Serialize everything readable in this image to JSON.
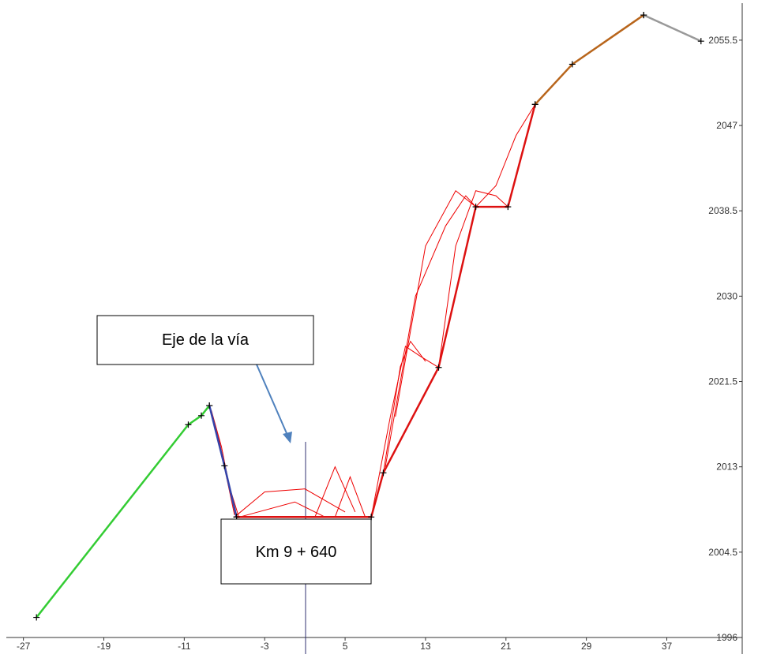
{
  "chart_data": {
    "type": "line",
    "xlim": [
      -28.7,
      44.5
    ],
    "ylim": [
      1996,
      2059.5
    ],
    "xticks": [
      -27,
      -19,
      -11,
      -3,
      5,
      13,
      21,
      29,
      37
    ],
    "yticks": [
      1996,
      2004.5,
      2013,
      2021.5,
      2030,
      2038.5,
      2047,
      2055.5
    ],
    "series": [
      {
        "color": "#33cc33",
        "x": [
          -25.7,
          -10.6,
          -9.3,
          -8.5
        ],
        "values": [
          1998.0,
          2017.2,
          2018.1,
          2019.1
        ]
      },
      {
        "color": "#3344aa",
        "x": [
          -8.5,
          -7.0,
          -5.8
        ],
        "values": [
          2019.1,
          2013.1,
          2008.0
        ]
      },
      {
        "color": "#dd1111",
        "x": [
          -5.8,
          7.6,
          8.8,
          14.3,
          18.0,
          21.2,
          23.9
        ],
        "values": [
          2008.0,
          2008.0,
          2012.4,
          2022.9,
          2038.9,
          2038.9,
          2049.1
        ]
      },
      {
        "color": "#b8651b",
        "x": [
          23.9,
          27.6,
          34.7
        ],
        "values": [
          2049.1,
          2053.1,
          2058.0
        ]
      },
      {
        "color": "#999999",
        "x": [
          34.7,
          40.4
        ],
        "values": [
          2058.0,
          2055.4
        ]
      }
    ],
    "trajectories": {
      "color": "#ee0000",
      "lines": [
        {
          "x": [
            -8.5,
            -7.6,
            -6.8,
            -6.0
          ],
          "values": [
            2019.1,
            2016.0,
            2012.0,
            2008.2
          ]
        },
        {
          "x": [
            -8.3,
            -7.3,
            -6.5,
            -5.6
          ],
          "values": [
            2018.6,
            2015.0,
            2011.0,
            2008.1
          ]
        },
        {
          "x": [
            -6.0,
            -3.0,
            1.0,
            5.0
          ],
          "values": [
            2008.0,
            2010.5,
            2010.8,
            2008.5
          ]
        },
        {
          "x": [
            -5.5,
            0.0,
            3.0
          ],
          "values": [
            2008.0,
            2009.5,
            2008.0
          ]
        },
        {
          "x": [
            2.0,
            4.0,
            6.0
          ],
          "values": [
            2008.0,
            2013.0,
            2008.5
          ]
        },
        {
          "x": [
            4.0,
            5.5,
            7.0
          ],
          "values": [
            2008.0,
            2012.0,
            2008.0
          ]
        },
        {
          "x": [
            7.6,
            9.5,
            11.0,
            12.5,
            14.3
          ],
          "values": [
            2008.0,
            2018.0,
            2025.0,
            2024.0,
            2022.9
          ]
        },
        {
          "x": [
            8.8,
            10.5,
            11.5,
            13.0
          ],
          "values": [
            2012.4,
            2023.0,
            2025.5,
            2023.5
          ]
        },
        {
          "x": [
            9.0,
            12.0,
            15.0,
            17.0,
            18.0
          ],
          "values": [
            2013.0,
            2030.0,
            2037.0,
            2040.0,
            2038.9
          ]
        },
        {
          "x": [
            10.0,
            13.0,
            16.0,
            18.0
          ],
          "values": [
            2018.0,
            2035.0,
            2040.5,
            2038.9
          ]
        },
        {
          "x": [
            14.3,
            16.0,
            18.0,
            20.0,
            21.2
          ],
          "values": [
            2022.9,
            2035.0,
            2040.5,
            2040.0,
            2038.9
          ]
        },
        {
          "x": [
            18.0,
            20.0,
            22.0,
            23.9
          ],
          "values": [
            2038.9,
            2041.0,
            2046.0,
            2049.1
          ]
        },
        {
          "x": [
            21.2,
            22.5,
            23.9
          ],
          "values": [
            2038.9,
            2044.0,
            2049.1
          ]
        }
      ]
    },
    "annotations": [
      "Eje de la vía",
      "Km 9 + 640"
    ]
  }
}
